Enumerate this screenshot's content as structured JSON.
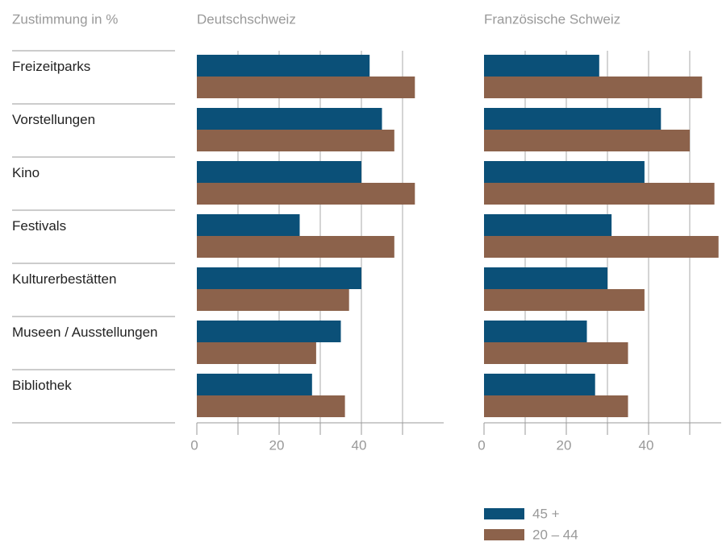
{
  "header": "Zustimmung in %",
  "chart_data": [
    {
      "type": "barh",
      "title": "Deutschschweiz",
      "categories": [
        "Freizeitparks",
        "Vorstellungen",
        "Kino",
        "Festivals",
        "Kulturerbestätten",
        "Museen / Ausstellungen",
        "Bibliothek"
      ],
      "series": [
        {
          "name": "45 +",
          "color": "#0b5078",
          "values": [
            42,
            45,
            40,
            25,
            40,
            35,
            28
          ]
        },
        {
          "name": "20 – 44",
          "color": "#8c624b",
          "values": [
            53,
            48,
            53,
            48,
            37,
            29,
            36
          ]
        }
      ],
      "xlim": [
        0,
        60
      ],
      "xticks": [
        0,
        20,
        40
      ],
      "minor_xticks": [
        10,
        30,
        50
      ],
      "grid": true
    },
    {
      "type": "barh",
      "title": "Französische Schweiz",
      "series": [
        {
          "values": [
            28,
            43,
            39,
            31,
            30,
            25,
            27
          ]
        },
        {
          "values": [
            53,
            50,
            56,
            57,
            39,
            35,
            35
          ]
        }
      ],
      "xlim": [
        0,
        60
      ],
      "xticks": [
        0,
        20,
        40
      ],
      "minor_xticks": [
        10,
        30,
        50
      ],
      "grid": true
    }
  ]
}
